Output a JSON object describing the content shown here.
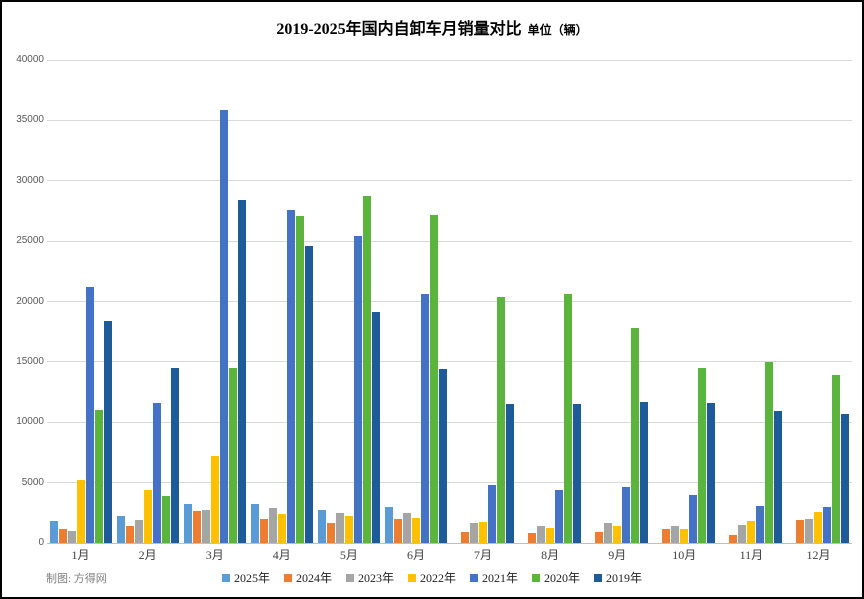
{
  "title": "2019-2025年国内自卸车月销量对比",
  "subtitle": "单位（辆）",
  "credit": "制图: 方得网",
  "chart_data": {
    "type": "bar",
    "title": "2019-2025年国内自卸车月销量对比",
    "subtitle_unit": "单位（辆）",
    "categories": [
      "1月",
      "2月",
      "3月",
      "4月",
      "5月",
      "6月",
      "7月",
      "8月",
      "9月",
      "10月",
      "11月",
      "12月"
    ],
    "series": [
      {
        "name": "2025年",
        "color": "#5B9BD5",
        "values": [
          1850,
          2250,
          3200,
          3250,
          2750,
          2950,
          null,
          null,
          null,
          null,
          null,
          null
        ]
      },
      {
        "name": "2024年",
        "color": "#ED7D31",
        "values": [
          1200,
          1450,
          2650,
          2000,
          1650,
          2000,
          950,
          800,
          900,
          1150,
          650,
          1900
        ]
      },
      {
        "name": "2023年",
        "color": "#A5A5A5",
        "values": [
          1000,
          1900,
          2700,
          2900,
          2500,
          2500,
          1650,
          1400,
          1650,
          1450,
          1500,
          2000
        ]
      },
      {
        "name": "2022年",
        "color": "#FFC000",
        "values": [
          5200,
          4400,
          7200,
          2400,
          2250,
          2100,
          1700,
          1250,
          1450,
          1200,
          1850,
          2600
        ]
      },
      {
        "name": "2021年",
        "color": "#4472C4",
        "values": [
          21200,
          11600,
          35900,
          27600,
          25400,
          20600,
          4800,
          4400,
          4650,
          4000,
          3100,
          3000
        ]
      },
      {
        "name": "2020年",
        "color": "#5BB43C",
        "values": [
          11000,
          3900,
          14500,
          27100,
          28700,
          27200,
          20400,
          20600,
          17800,
          14500,
          15000,
          13900
        ]
      },
      {
        "name": "2019年",
        "color": "#1E5C99",
        "values": [
          18400,
          14500,
          28400,
          24600,
          19100,
          14400,
          11500,
          11500,
          11650,
          11600,
          10900,
          10700
        ]
      }
    ],
    "xlabel": "",
    "ylabel": "",
    "ylim": [
      0,
      40000
    ],
    "ytick_step": 5000,
    "grid": true,
    "legend_position": "bottom"
  }
}
